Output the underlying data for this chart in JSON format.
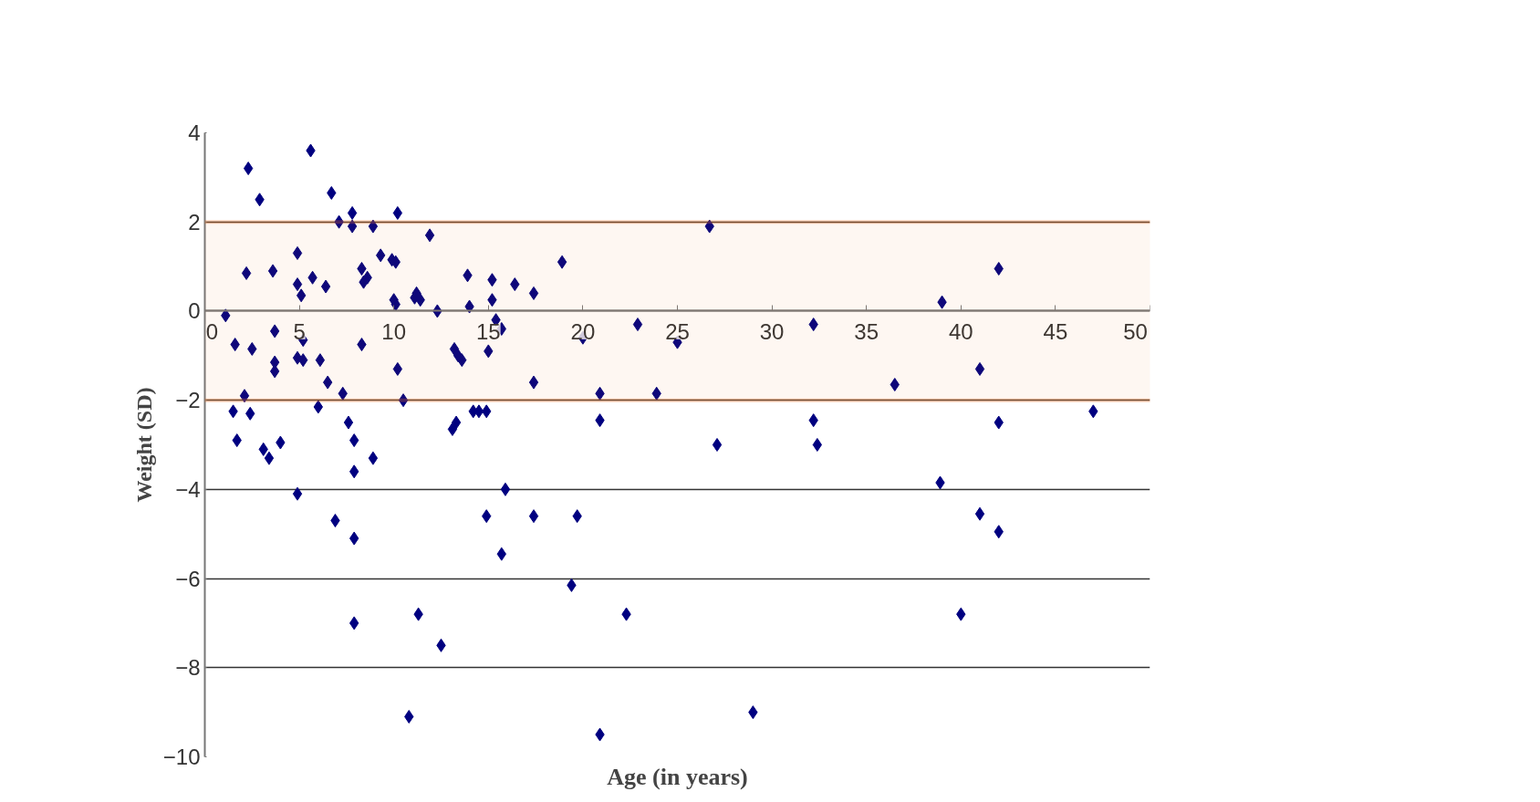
{
  "chart_data": {
    "type": "scatter",
    "xlabel": "Age (in years)",
    "ylabel": "Weight (SD)",
    "xlim": [
      0,
      50
    ],
    "xticks": [
      0,
      5,
      10,
      15,
      20,
      25,
      30,
      35,
      40,
      45,
      50
    ],
    "ylim": [
      -10,
      4
    ],
    "yticks": [
      -10,
      -8,
      -6,
      -4,
      -2,
      0,
      2,
      4
    ],
    "grid": "y",
    "marker": "diamond",
    "bands": [
      {
        "axis": "y",
        "from": -2,
        "to": 2,
        "color": "#ed7020"
      }
    ],
    "series": [
      {
        "color": "#000080",
        "x": [
          1.1,
          2.3,
          2.9,
          2.2,
          3.6,
          1.6,
          2.5,
          1.5,
          2.4,
          2.1,
          1.7,
          3.1,
          3.4,
          4.0,
          3.7,
          3.7,
          3.7,
          4.9,
          4.9,
          5.1,
          5.7,
          6.4,
          5.6,
          6.7,
          7.1,
          7.8,
          7.8,
          8.9,
          9.3,
          9.9,
          10.1,
          10.2,
          8.3,
          8.4,
          8.6,
          5.2,
          4.9,
          5.2,
          6.1,
          6.5,
          7.3,
          6.0,
          7.6,
          7.9,
          8.9,
          7.9,
          8.3,
          4.9,
          6.9,
          7.9,
          7.9,
          10.0,
          10.1,
          11.1,
          11.4,
          11.2,
          10.2,
          10.5,
          11.9,
          12.3,
          11.3,
          10.8,
          12.5,
          13.9,
          14.0,
          13.2,
          13.4,
          13.6,
          15.2,
          15.2,
          15.4,
          15.7,
          15.0,
          16.4,
          17.4,
          17.4,
          18.9,
          14.2,
          14.5,
          14.9,
          13.1,
          13.3,
          14.9,
          15.9,
          15.7,
          17.4,
          19.7,
          19.4,
          20.0,
          20.9,
          20.9,
          20.9,
          22.3,
          22.9,
          23.9,
          25.0,
          26.7,
          27.1,
          29.0,
          32.2,
          32.2,
          32.4,
          36.5,
          39.0,
          38.9,
          40.0,
          41.0,
          41.0,
          42.0,
          42.0,
          42.0,
          47.0
        ],
        "values": [
          -0.1,
          3.2,
          2.5,
          0.85,
          0.9,
          -0.75,
          -0.85,
          -2.25,
          -2.3,
          -1.9,
          -2.9,
          -3.1,
          -3.3,
          -2.95,
          -0.45,
          -1.15,
          -1.35,
          1.3,
          0.6,
          0.35,
          0.75,
          0.55,
          3.6,
          2.65,
          2.0,
          2.2,
          1.9,
          1.9,
          1.25,
          1.15,
          1.1,
          2.2,
          0.95,
          0.65,
          0.75,
          -0.65,
          -1.05,
          -1.1,
          -1.1,
          -1.6,
          -1.85,
          -2.15,
          -2.5,
          -2.9,
          -3.3,
          -3.6,
          -0.75,
          -4.1,
          -4.7,
          -5.1,
          -7.0,
          0.25,
          0.15,
          0.3,
          0.25,
          0.4,
          -1.3,
          -2.0,
          1.7,
          0.0,
          -6.8,
          -9.1,
          -7.5,
          0.8,
          0.1,
          -0.85,
          -1.0,
          -1.1,
          0.7,
          0.25,
          -0.2,
          -0.4,
          -0.9,
          0.6,
          0.4,
          -1.6,
          1.1,
          -2.25,
          -2.25,
          -2.25,
          -2.65,
          -2.5,
          -4.6,
          -4.0,
          -5.45,
          -4.6,
          -4.6,
          -6.15,
          -0.6,
          -1.85,
          -2.45,
          -9.5,
          -6.8,
          -0.3,
          -1.85,
          -0.7,
          1.9,
          -3.0,
          -9.0,
          -0.3,
          -2.45,
          -3.0,
          -1.65,
          0.2,
          -3.85,
          -6.8,
          -1.3,
          -4.55,
          0.95,
          -2.5,
          -4.95,
          -2.25
        ]
      }
    ]
  }
}
